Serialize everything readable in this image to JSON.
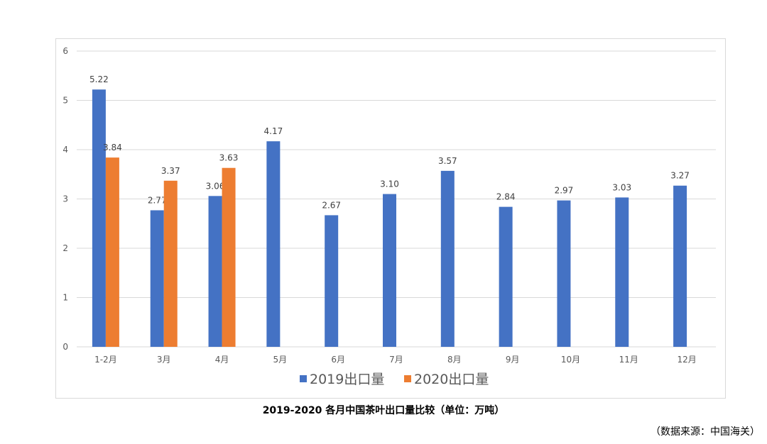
{
  "caption": "2019-2020 各月中国茶叶出口量比较（单位：万吨）",
  "source": "（数据来源：中国海关）",
  "colors": {
    "2019": "#4472c4",
    "2020": "#ed7d31",
    "grid": "#d9d9d9"
  },
  "chart_data": {
    "type": "bar",
    "categories": [
      "1-2月",
      "3月",
      "4月",
      "5月",
      "6月",
      "7月",
      "8月",
      "9月",
      "10月",
      "11月",
      "12月"
    ],
    "series": [
      {
        "name": "2019出口量",
        "values": [
          5.22,
          2.77,
          3.06,
          4.17,
          2.67,
          3.1,
          3.57,
          2.84,
          2.97,
          3.03,
          3.27
        ]
      },
      {
        "name": "2020出口量",
        "values": [
          3.84,
          3.37,
          3.63,
          null,
          null,
          null,
          null,
          null,
          null,
          null,
          null
        ]
      }
    ],
    "data_labels": [
      [
        "5.22",
        "2.77",
        "3.06",
        "4.17",
        "2.67",
        "3.10",
        "3.57",
        "2.84",
        "2.97",
        "3.03",
        "3.27"
      ],
      [
        "3.84",
        "3.37",
        "3.63",
        "",
        "",
        "",
        "",
        "",
        "",
        "",
        ""
      ]
    ],
    "yticks": [
      "0",
      "1",
      "2",
      "3",
      "4",
      "5",
      "6"
    ],
    "ylim": [
      0,
      6
    ],
    "grid": true,
    "legend_position": "bottom"
  }
}
